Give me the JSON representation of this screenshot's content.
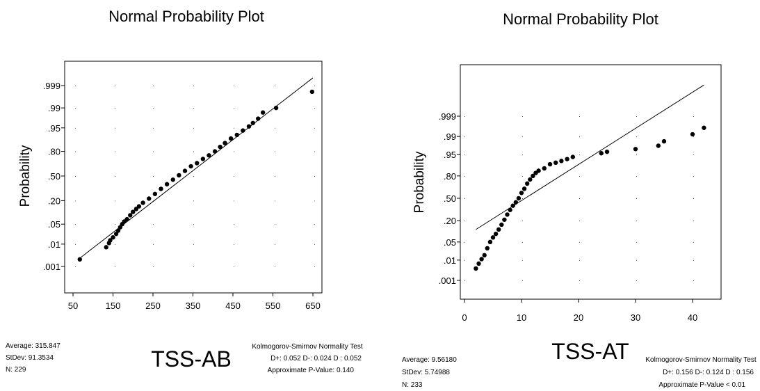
{
  "chart_data": [
    {
      "type": "scatter",
      "title": "Normal Probability Plot",
      "xlabel": "TSS-AB",
      "ylabel": "Probability",
      "x_ticks": [
        "50",
        "150",
        "250",
        "350",
        "450",
        "550",
        "650"
      ],
      "xlim": [
        50,
        650
      ],
      "y_ticks": [
        ".001",
        ".01",
        ".05",
        ".20",
        ".50",
        ".80",
        ".95",
        ".99",
        ".999"
      ],
      "y_scale": "normal-probability",
      "grid": "dotted",
      "fit_line": {
        "x": [
          67,
          650
        ],
        "p": [
          0.0025,
          0.9996
        ]
      },
      "stats": {
        "average": "Average: 315.847",
        "stdev": "StDev: 91.3534",
        "n": "N: 229"
      },
      "test": {
        "title": "Kolmogorov-Smirnov Normality Test",
        "values": "D+: 0.052  D-: 0.024  D : 0.052",
        "pvalue": "Approximate P-Value: 0.140"
      },
      "series": [
        {
          "values": [
            [
              67,
              0.0022
            ],
            [
              133,
              0.0075
            ],
            [
              140,
              0.011
            ],
            [
              143,
              0.014
            ],
            [
              150,
              0.018
            ],
            [
              158,
              0.024
            ],
            [
              163,
              0.031
            ],
            [
              168,
              0.04
            ],
            [
              173,
              0.05
            ],
            [
              178,
              0.06
            ],
            [
              185,
              0.07
            ],
            [
              193,
              0.09
            ],
            [
              200,
              0.11
            ],
            [
              208,
              0.13
            ],
            [
              215,
              0.15
            ],
            [
              225,
              0.18
            ],
            [
              240,
              0.22
            ],
            [
              255,
              0.27
            ],
            [
              270,
              0.33
            ],
            [
              285,
              0.39
            ],
            [
              300,
              0.45
            ],
            [
              315,
              0.51
            ],
            [
              330,
              0.57
            ],
            [
              345,
              0.63
            ],
            [
              360,
              0.67
            ],
            [
              375,
              0.72
            ],
            [
              390,
              0.76
            ],
            [
              405,
              0.8
            ],
            [
              418,
              0.84
            ],
            [
              430,
              0.87
            ],
            [
              445,
              0.9
            ],
            [
              460,
              0.92
            ],
            [
              475,
              0.94
            ],
            [
              490,
              0.955
            ],
            [
              500,
              0.965
            ],
            [
              513,
              0.975
            ],
            [
              525,
              0.985
            ],
            [
              558,
              0.99
            ],
            [
              648,
              0.998
            ]
          ]
        }
      ]
    },
    {
      "type": "scatter",
      "title": "Normal Probability Plot",
      "xlabel": "TSS-AT",
      "ylabel": "Probability",
      "x_ticks": [
        "0",
        "10",
        "20",
        "30",
        "40"
      ],
      "xlim": [
        0,
        45
      ],
      "y_ticks": [
        ".001",
        ".01",
        ".05",
        ".20",
        ".50",
        ".80",
        ".95",
        ".99",
        ".999"
      ],
      "y_scale": "normal-probability",
      "grid": "dotted",
      "fit_line": {
        "x": [
          2,
          42
        ],
        "p": [
          0.12,
          0.99999
        ]
      },
      "stats": {
        "average": "Average: 9.56180",
        "stdev": "StDev: 5.74988",
        "n": "N: 233"
      },
      "test": {
        "title": "Kolmogorov-Smirnov Normality Test",
        "values": "D+: 0.156  D-: 0.124  D : 0.156",
        "pvalue": "Approximate P-Value < 0.01"
      },
      "series": [
        {
          "values": [
            [
              2.0,
              0.0041
            ],
            [
              2.5,
              0.007
            ],
            [
              3.0,
              0.011
            ],
            [
              3.5,
              0.016
            ],
            [
              4.0,
              0.03
            ],
            [
              4.5,
              0.05
            ],
            [
              5.0,
              0.07
            ],
            [
              5.5,
              0.09
            ],
            [
              6.0,
              0.12
            ],
            [
              6.5,
              0.16
            ],
            [
              7.0,
              0.21
            ],
            [
              7.5,
              0.27
            ],
            [
              8.0,
              0.33
            ],
            [
              8.5,
              0.39
            ],
            [
              9.0,
              0.44
            ],
            [
              9.5,
              0.5
            ],
            [
              10.0,
              0.58
            ],
            [
              10.5,
              0.64
            ],
            [
              11.0,
              0.71
            ],
            [
              11.5,
              0.76
            ],
            [
              12.0,
              0.8
            ],
            [
              12.5,
              0.83
            ],
            [
              13.0,
              0.85
            ],
            [
              14.0,
              0.87
            ],
            [
              15.0,
              0.9
            ],
            [
              16.0,
              0.91
            ],
            [
              17.0,
              0.92
            ],
            [
              18.0,
              0.93
            ],
            [
              19.0,
              0.94
            ],
            [
              24.0,
              0.955
            ],
            [
              25.0,
              0.96
            ],
            [
              30.0,
              0.968
            ],
            [
              34.0,
              0.976
            ],
            [
              35.0,
              0.984
            ],
            [
              40.0,
              0.992
            ],
            [
              42.0,
              0.996
            ]
          ]
        }
      ]
    }
  ]
}
